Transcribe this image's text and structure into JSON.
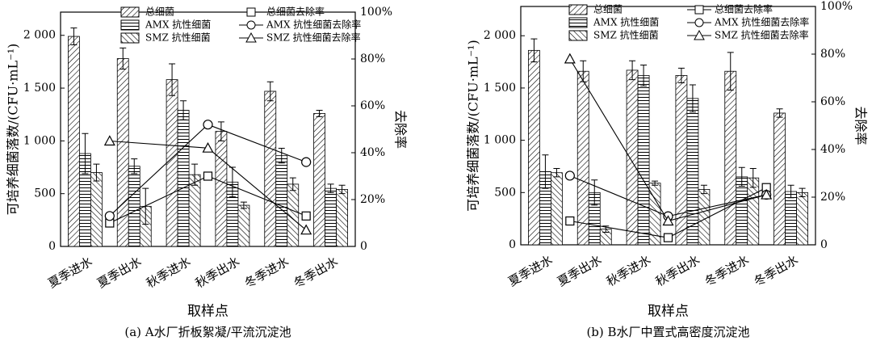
{
  "chart_data": [
    {
      "type": "bar",
      "title": "(a) A水厂折板絮凝/平流沉淀池",
      "x_label": "取样点",
      "y_label": "可培养细菌落数/(CFU·mL⁻¹)",
      "y2_label": "去除率",
      "categories": [
        "夏季进水",
        "夏季出水",
        "秋季进水",
        "秋季出水",
        "冬季进水",
        "冬季出水"
      ],
      "ylim": [
        0,
        2220
      ],
      "yticks": [
        0,
        500,
        {
          "value": 1000,
          "label": "1 000"
        },
        {
          "value": 1500,
          "label": "1 500"
        },
        {
          "value": 2000,
          "label": "2 000"
        }
      ],
      "y2lim": [
        0,
        100
      ],
      "y2ticks": [
        0,
        {
          "value": 20,
          "label": "20%"
        },
        {
          "value": 40,
          "label": "40%"
        },
        {
          "value": 60,
          "label": "60%"
        },
        {
          "value": 80,
          "label": "80%"
        },
        {
          "value": 100,
          "label": "100%"
        }
      ],
      "series": [
        {
          "name": "总细菌",
          "type": "bar",
          "hatch": "/",
          "color": "#000000",
          "values": [
            1990,
            1780,
            1580,
            1090,
            1470,
            1260
          ],
          "errors": [
            80,
            100,
            150,
            90,
            90,
            30
          ]
        },
        {
          "name": "AMX 抗性细菌",
          "type": "bar",
          "hatch": "-",
          "color": "#000000",
          "values": [
            880,
            760,
            1290,
            610,
            860,
            550
          ],
          "errors": [
            190,
            70,
            90,
            140,
            70,
            40
          ]
        },
        {
          "name": "SMZ 抗性细菌",
          "type": "bar",
          "hatch": "\\",
          "color": "#000000",
          "values": [
            700,
            380,
            680,
            390,
            590,
            540
          ],
          "errors": [
            80,
            170,
            100,
            30,
            60,
            40
          ]
        },
        {
          "name": "总细菌去除率",
          "type": "line",
          "axis": "y2",
          "marker": "square",
          "color": "#000000",
          "values": [
            null,
            10,
            null,
            30,
            null,
            13
          ]
        },
        {
          "name": "AMX 抗性细菌去除率",
          "type": "line",
          "axis": "y2",
          "marker": "circle",
          "color": "#000000",
          "values": [
            null,
            13,
            null,
            52,
            null,
            36
          ]
        },
        {
          "name": "SMZ 抗性细菌去除率",
          "type": "line",
          "axis": "y2",
          "marker": "triangle",
          "color": "#000000",
          "values": [
            null,
            45,
            null,
            42,
            null,
            7
          ]
        }
      ]
    },
    {
      "type": "bar",
      "title": "(b) B水厂中置式高密度沉淀池",
      "x_label": "取样点",
      "y_label": "可培养细菌落数/(CFU·mL⁻¹)",
      "y2_label": "去除率",
      "categories": [
        "夏季进水",
        "夏季出水",
        "秋季进水",
        "秋季出水",
        "冬季进水",
        "冬季出水"
      ],
      "ylim": [
        0,
        2280
      ],
      "yticks": [
        0,
        500,
        {
          "value": 1000,
          "label": "1 000"
        },
        {
          "value": 1500,
          "label": "1 500"
        },
        {
          "value": 2000,
          "label": "2 000"
        }
      ],
      "y2lim": [
        0,
        100
      ],
      "y2ticks": [
        0,
        {
          "value": 20,
          "label": "20%"
        },
        {
          "value": 40,
          "label": "40%"
        },
        {
          "value": 60,
          "label": "60%"
        },
        {
          "value": 80,
          "label": "80%"
        },
        {
          "value": 100,
          "label": "100%"
        }
      ],
      "series": [
        {
          "name": "总细菌",
          "type": "bar",
          "hatch": "/",
          "color": "#000000",
          "values": [
            1860,
            1660,
            1670,
            1620,
            1660,
            1260
          ],
          "errors": [
            110,
            100,
            90,
            70,
            180,
            40
          ]
        },
        {
          "name": "AMX 抗性细菌",
          "type": "bar",
          "hatch": "-",
          "color": "#000000",
          "values": [
            700,
            500,
            1620,
            1400,
            650,
            510
          ],
          "errors": [
            160,
            120,
            100,
            130,
            90,
            60
          ]
        },
        {
          "name": "SMZ 抗性细菌",
          "type": "bar",
          "hatch": "\\",
          "color": "#000000",
          "values": [
            690,
            150,
            590,
            530,
            640,
            500
          ],
          "errors": [
            40,
            30,
            20,
            40,
            90,
            40
          ]
        },
        {
          "name": "总细菌去除率",
          "type": "line",
          "axis": "y2",
          "marker": "square",
          "color": "#000000",
          "values": [
            null,
            10,
            null,
            3,
            null,
            24
          ]
        },
        {
          "name": "AMX 抗性细菌去除率",
          "type": "line",
          "axis": "y2",
          "marker": "circle",
          "color": "#000000",
          "values": [
            null,
            29,
            null,
            12,
            null,
            21
          ]
        },
        {
          "name": "SMZ 抗性细菌去除率",
          "type": "line",
          "axis": "y2",
          "marker": "triangle",
          "color": "#000000",
          "values": [
            null,
            78,
            null,
            10,
            null,
            21
          ]
        }
      ]
    }
  ]
}
